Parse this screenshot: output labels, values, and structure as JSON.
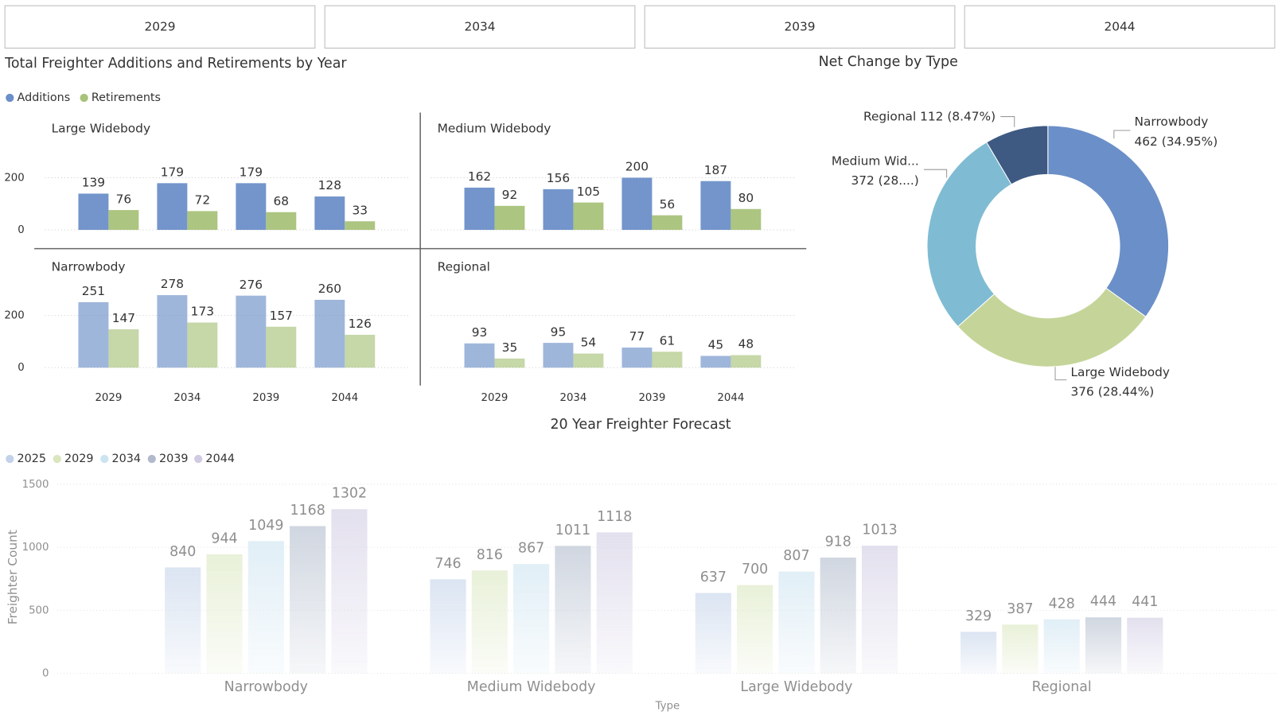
{
  "slicer": [
    "2029",
    "2034",
    "2039",
    "2044"
  ],
  "chart_data": [
    {
      "type": "bar",
      "title": "Total Freighter Additions and Retirements by Year",
      "categories": [
        "2029",
        "2034",
        "2039",
        "2044"
      ],
      "series": [
        {
          "name": "Additions",
          "color": "#6b8fc8"
        },
        {
          "name": "Retirements",
          "color": "#a8c27a"
        }
      ],
      "ylim": [
        0,
        300
      ],
      "yticks": [
        0,
        200
      ],
      "grid": true,
      "panels": [
        {
          "title": "Large Widebody",
          "series": [
            {
              "values": [
                139,
                179,
                179,
                128
              ]
            },
            {
              "values": [
                76,
                72,
                68,
                33
              ]
            }
          ]
        },
        {
          "title": "Medium Widebody",
          "series": [
            {
              "values": [
                162,
                156,
                200,
                187
              ]
            },
            {
              "values": [
                92,
                105,
                56,
                80
              ]
            }
          ]
        },
        {
          "title": "Narrowbody",
          "series": [
            {
              "values": [
                251,
                278,
                276,
                260
              ]
            },
            {
              "values": [
                147,
                173,
                157,
                126
              ]
            }
          ]
        },
        {
          "title": "Regional",
          "series": [
            {
              "values": [
                93,
                95,
                77,
                45
              ]
            },
            {
              "values": [
                35,
                54,
                61,
                48
              ]
            }
          ]
        }
      ]
    },
    {
      "type": "pie",
      "donut": true,
      "title": "Net Change by Type",
      "categories": [
        "Narrowbody",
        "Large Widebody",
        "Medium Wid...",
        "Regional"
      ],
      "values": [
        462,
        376,
        372,
        112
      ],
      "value_labels": [
        "462 (34.95%)",
        "376 (28.44%)",
        "372 (28....)",
        "112 (8.47%)"
      ],
      "colors": [
        "#6b8fc8",
        "#c5d59a",
        "#7fbcd3",
        "#3e5a82"
      ]
    },
    {
      "type": "bar",
      "title": "20 Year Freighter Forecast",
      "categories": [
        "Narrowbody",
        "Medium Widebody",
        "Large Widebody",
        "Regional"
      ],
      "series": [
        {
          "name": "2025",
          "color": "#a9bfe0",
          "values": [
            840,
            746,
            637,
            329
          ]
        },
        {
          "name": "2029",
          "color": "#c9dca2",
          "values": [
            944,
            816,
            700,
            387
          ]
        },
        {
          "name": "2034",
          "color": "#b6d7ea",
          "values": [
            1049,
            867,
            807,
            428
          ]
        },
        {
          "name": "2039",
          "color": "#8e9db5",
          "values": [
            1168,
            1011,
            918,
            444
          ]
        },
        {
          "name": "2044",
          "color": "#bcb5d6",
          "values": [
            1302,
            1118,
            1013,
            441
          ]
        }
      ],
      "ylim": [
        0,
        1500
      ],
      "yticks": [
        0,
        500,
        1000,
        1500
      ],
      "grid": true,
      "y_label": "Freighter Count",
      "x_label": "Type"
    }
  ]
}
